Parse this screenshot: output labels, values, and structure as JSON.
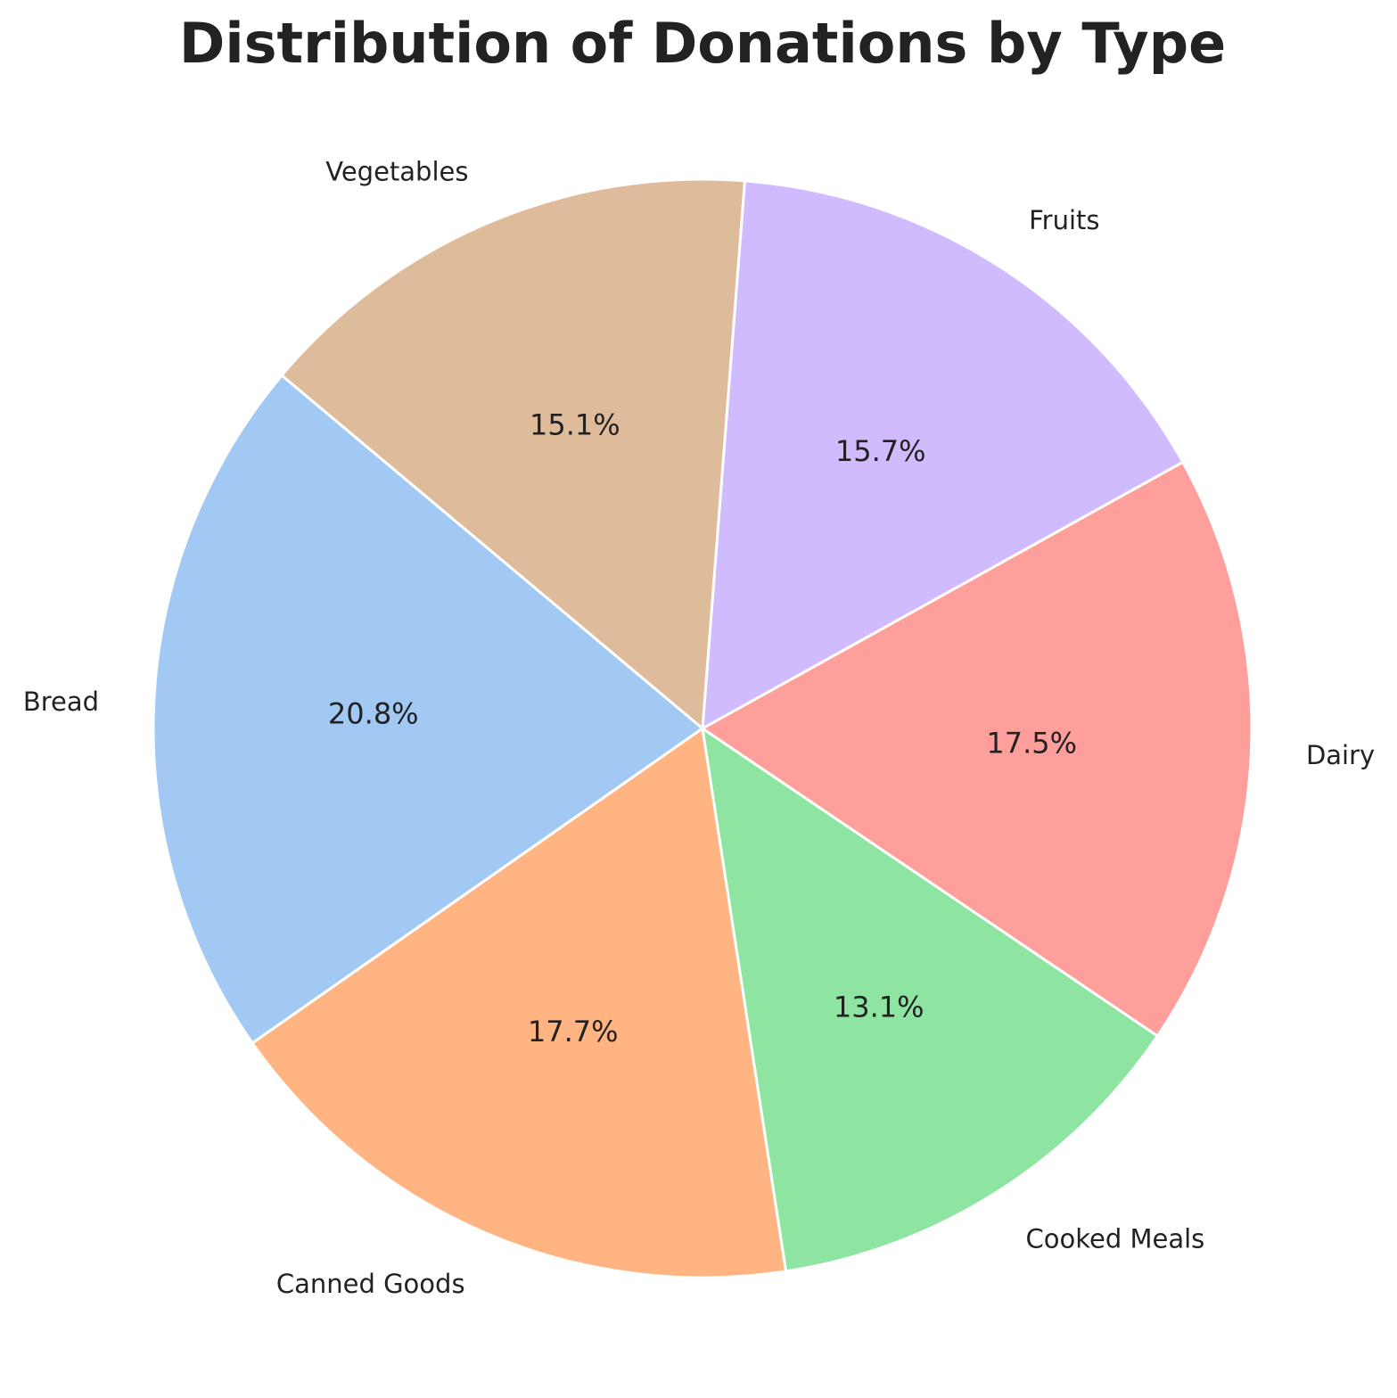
{
  "chart_data": {
    "type": "pie",
    "title": "Distribution of Donations by Type",
    "start_angle_deg": 140,
    "direction": "counterclockwise",
    "slices": [
      {
        "label": "Bread",
        "value": 20.8,
        "pct_label": "20.8%",
        "color": "#a1c9f4"
      },
      {
        "label": "Canned Goods",
        "value": 17.7,
        "pct_label": "17.7%",
        "color": "#ffb482"
      },
      {
        "label": "Cooked Meals",
        "value": 13.1,
        "pct_label": "13.1%",
        "color": "#8de5a1"
      },
      {
        "label": "Dairy",
        "value": 17.5,
        "pct_label": "17.5%",
        "color": "#ff9f9b"
      },
      {
        "label": "Fruits",
        "value": 15.7,
        "pct_label": "15.7%",
        "color": "#d0bbff"
      },
      {
        "label": "Vegetables",
        "value": 15.1,
        "pct_label": "15.1%",
        "color": "#debb9b"
      }
    ]
  }
}
